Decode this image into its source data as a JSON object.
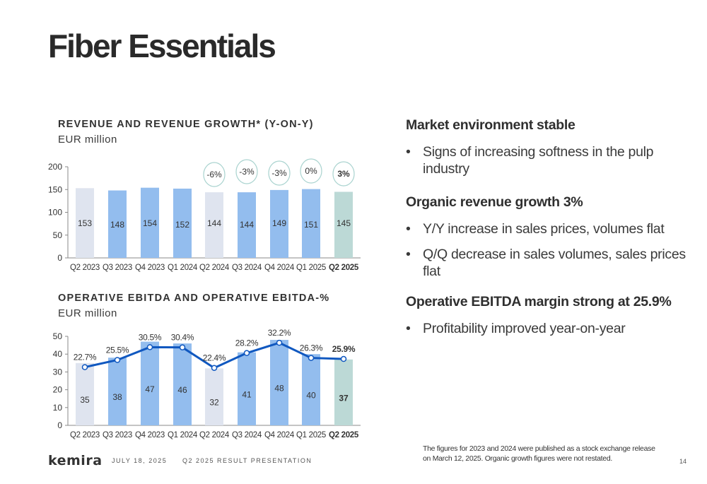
{
  "page": {
    "title": "Fiber Essentials",
    "page_number": "14"
  },
  "colors": {
    "bar_prev_year": "#dfe4ef",
    "bar_quarter": "#93bdee",
    "bar_current": "#bcd9d6",
    "line": "#1058c0",
    "bubble_border": "#a9d3cf",
    "axis": "#888888",
    "text": "#333333"
  },
  "chart_data": [
    {
      "type": "bar",
      "title": "REVENUE AND REVENUE GROWTH* (Y-ON-Y)",
      "subtitle": "EUR million",
      "categories": [
        "Q2 2023",
        "Q3 2023",
        "Q4 2023",
        "Q1 2024",
        "Q2 2024",
        "Q3 2024",
        "Q4 2024",
        "Q1 2025",
        "Q2 2025"
      ],
      "bold_category": "Q2 2025",
      "values": [
        153,
        148,
        154,
        152,
        144,
        144,
        149,
        151,
        145
      ],
      "bar_styles": [
        "prev_year",
        "quarter",
        "quarter",
        "quarter",
        "prev_year",
        "quarter",
        "quarter",
        "quarter",
        "current"
      ],
      "growth_labels": [
        null,
        null,
        null,
        null,
        "-6%",
        "-3%",
        "-3%",
        "0%",
        "3%"
      ],
      "ylim": [
        0,
        200
      ],
      "yticks": [
        0,
        50,
        100,
        150,
        200
      ],
      "xlabel": "",
      "ylabel": "",
      "grid": false
    },
    {
      "type": "bar+line",
      "title": "OPERATIVE EBITDA AND OPERATIVE EBITDA-%",
      "subtitle": "EUR million",
      "categories": [
        "Q2 2023",
        "Q3 2023",
        "Q4 2023",
        "Q1 2024",
        "Q2 2024",
        "Q3 2024",
        "Q4 2024",
        "Q1 2025",
        "Q2 2025"
      ],
      "bold_category": "Q2 2025",
      "series": [
        {
          "name": "Operative EBITDA",
          "kind": "bar",
          "values": [
            35,
            38,
            47,
            46,
            32,
            41,
            48,
            40,
            37
          ]
        },
        {
          "name": "Operative EBITDA-%",
          "kind": "line",
          "values": [
            22.7,
            25.5,
            30.5,
            30.4,
            22.4,
            28.2,
            32.2,
            26.3,
            25.9
          ],
          "labels": [
            "22.7%",
            "25.5%",
            "30.5%",
            "30.4%",
            "22.4%",
            "28.2%",
            "32.2%",
            "26.3%",
            "25.9%"
          ]
        }
      ],
      "bar_styles": [
        "prev_year",
        "quarter",
        "quarter",
        "quarter",
        "prev_year",
        "quarter",
        "quarter",
        "quarter",
        "current"
      ],
      "ylim": [
        0,
        50
      ],
      "yticks": [
        0,
        10,
        20,
        30,
        40,
        50
      ],
      "xlabel": "",
      "ylabel": "",
      "grid": false
    }
  ],
  "commentary": [
    {
      "heading": "Market environment stable",
      "bullets": [
        "Signs of increasing softness in the pulp industry"
      ]
    },
    {
      "heading": "Organic revenue growth 3%",
      "bullets": [
        "Y/Y increase in sales prices, volumes flat",
        "Q/Q decrease in sales volumes, sales prices flat"
      ]
    },
    {
      "heading": "Operative EBITDA margin strong at 25.9%",
      "bullets": [
        "Profitability improved year-on-year"
      ]
    }
  ],
  "bullet_glyph": "•",
  "footer": {
    "logo": "kemira",
    "date": "JULY 18, 2025",
    "presentation": "Q2 2025 RESULT PRESENTATION",
    "note": "The figures for 2023 and 2024 were published as a stock exchange release on March 12, 2025. Organic growth figures were not restated."
  }
}
